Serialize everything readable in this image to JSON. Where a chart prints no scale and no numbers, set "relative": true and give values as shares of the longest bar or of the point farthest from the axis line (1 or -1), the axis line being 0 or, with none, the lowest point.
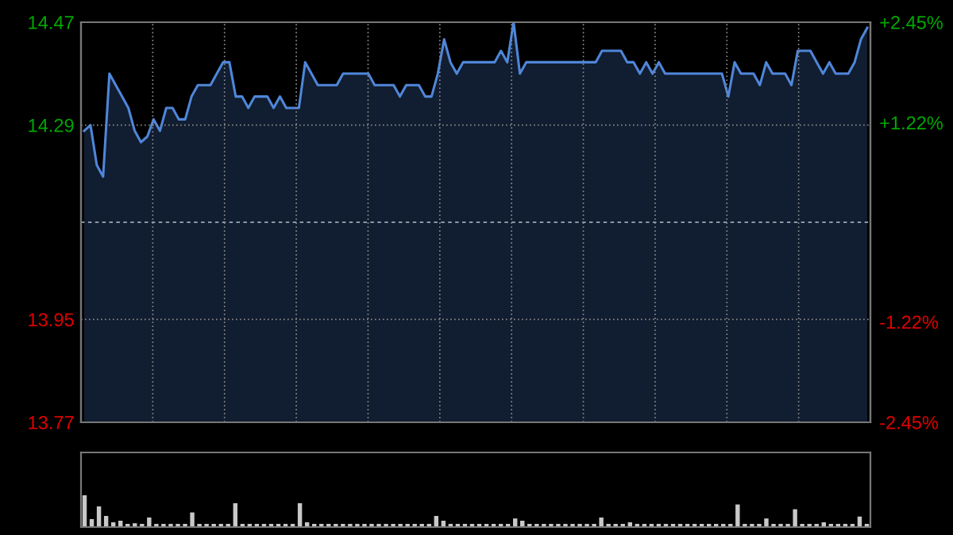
{
  "chart_data": [
    {
      "type": "area",
      "categories": [
        null,
        null,
        null,
        null,
        null,
        null,
        null,
        null,
        null,
        null,
        null,
        null,
        null,
        null,
        null,
        null,
        null,
        null,
        null,
        null,
        null,
        null,
        null,
        null,
        null,
        null,
        null,
        null,
        null,
        null,
        null,
        null,
        null,
        null,
        null,
        null,
        null,
        null,
        null,
        null,
        null,
        null,
        null,
        null,
        null,
        null,
        null,
        null,
        null,
        null,
        null,
        null,
        null,
        null,
        null,
        null,
        null,
        null,
        null,
        null,
        null,
        null,
        null,
        null,
        null,
        null,
        null,
        null,
        null,
        null,
        null,
        null,
        null,
        null,
        null,
        null,
        null,
        null,
        null,
        null,
        null,
        null,
        null,
        null,
        null,
        null,
        null,
        null,
        null,
        null,
        null,
        null,
        null,
        null,
        null,
        null,
        null,
        null,
        null,
        null,
        null,
        null,
        null,
        null,
        null,
        null,
        null,
        null,
        null,
        null,
        null,
        null,
        null,
        null,
        null,
        null,
        null,
        null,
        null,
        null,
        null,
        null,
        null,
        null,
        null
      ],
      "series": [
        {
          "color": "#4f86d9",
          "values": [
            14.28,
            14.29,
            14.22,
            14.2,
            14.38,
            14.36,
            14.34,
            14.32,
            14.28,
            14.26,
            14.27,
            14.3,
            14.28,
            14.32,
            14.32,
            14.3,
            14.3,
            14.34,
            14.36,
            14.36,
            14.36,
            14.38,
            14.4,
            14.4,
            14.34,
            14.34,
            14.32,
            14.34,
            14.34,
            14.34,
            14.32,
            14.34,
            14.32,
            14.32,
            14.32,
            14.4,
            14.38,
            14.36,
            14.36,
            14.36,
            14.36,
            14.38,
            14.38,
            14.38,
            14.38,
            14.38,
            14.36,
            14.36,
            14.36,
            14.36,
            14.34,
            14.36,
            14.36,
            14.36,
            14.34,
            14.34,
            14.38,
            14.44,
            14.4,
            14.38,
            14.4,
            14.4,
            14.4,
            14.4,
            14.4,
            14.4,
            14.42,
            14.4,
            14.47,
            14.38,
            14.4,
            14.4,
            14.4,
            14.4,
            14.4,
            14.4,
            14.4,
            14.4,
            14.4,
            14.4,
            14.4,
            14.4,
            14.42,
            14.42,
            14.42,
            14.42,
            14.4,
            14.4,
            14.38,
            14.4,
            14.38,
            14.4,
            14.38,
            14.38,
            14.38,
            14.38,
            14.38,
            14.38,
            14.38,
            14.38,
            14.38,
            14.38,
            14.34,
            14.4,
            14.38,
            14.38,
            14.38,
            14.36,
            14.4,
            14.38,
            14.38,
            14.38,
            14.36,
            14.42,
            14.42,
            14.42,
            14.4,
            14.38,
            14.4,
            14.38,
            14.38,
            14.38,
            14.4,
            14.44,
            14.46
          ]
        }
      ],
      "ylim": [
        13.77,
        14.47
      ],
      "yticks": [
        13.77,
        13.95,
        14.29,
        14.47
      ],
      "y2lim": [
        -2.45,
        2.45
      ],
      "y2ticks": [
        {
          "value": -2.45,
          "label": "-2.45%"
        },
        {
          "value": -1.22,
          "label": "-1.22%"
        },
        {
          "value": 1.22,
          "label": "+1.22%"
        },
        {
          "value": 2.45,
          "label": "+2.45%"
        }
      ],
      "ref_lines": [
        {
          "axis": "y",
          "value": 14.12,
          "label": null,
          "line_style": "dashed"
        }
      ],
      "grid": true,
      "tick_labels": "y"
    },
    {
      "type": "bar",
      "relative": true,
      "tick_labels": false,
      "categories": [
        null,
        null,
        null,
        null,
        null,
        null,
        null,
        null,
        null,
        null,
        null,
        null,
        null,
        null,
        null,
        null,
        null,
        null,
        null,
        null,
        null,
        null,
        null,
        null,
        null,
        null,
        null,
        null,
        null,
        null,
        null,
        null,
        null,
        null,
        null,
        null,
        null,
        null,
        null,
        null,
        null,
        null,
        null,
        null,
        null,
        null,
        null,
        null,
        null,
        null,
        null,
        null,
        null,
        null,
        null,
        null,
        null,
        null,
        null,
        null,
        null,
        null,
        null,
        null,
        null,
        null,
        null,
        null,
        null,
        null,
        null,
        null,
        null,
        null,
        null,
        null,
        null,
        null,
        null,
        null,
        null,
        null,
        null,
        null,
        null,
        null,
        null,
        null,
        null,
        null,
        null,
        null,
        null,
        null,
        null,
        null,
        null,
        null,
        null,
        null,
        null,
        null,
        null,
        null,
        null,
        null,
        null,
        null,
        null,
        null
      ],
      "series": [
        {
          "color": "#c8c8c8",
          "values": [
            1.0,
            0.25,
            0.65,
            0.35,
            0.15,
            0.2,
            0.1,
            0.12,
            0.1,
            0.3,
            0.1,
            0.1,
            0.1,
            0.1,
            0.1,
            0.46,
            0.1,
            0.1,
            0.1,
            0.1,
            0.1,
            0.75,
            0.1,
            0.1,
            0.1,
            0.1,
            0.1,
            0.1,
            0.1,
            0.1,
            0.75,
            0.15,
            0.1,
            0.1,
            0.1,
            0.1,
            0.1,
            0.1,
            0.1,
            0.1,
            0.1,
            0.1,
            0.1,
            0.1,
            0.1,
            0.1,
            0.1,
            0.1,
            0.1,
            0.35,
            0.2,
            0.1,
            0.1,
            0.1,
            0.1,
            0.1,
            0.1,
            0.1,
            0.1,
            0.1,
            0.27,
            0.2,
            0.1,
            0.1,
            0.1,
            0.1,
            0.1,
            0.1,
            0.1,
            0.1,
            0.1,
            0.1,
            0.3,
            0.1,
            0.1,
            0.1,
            0.15,
            0.1,
            0.1,
            0.1,
            0.1,
            0.1,
            0.1,
            0.1,
            0.1,
            0.1,
            0.1,
            0.1,
            0.1,
            0.1,
            0.1,
            0.71,
            0.1,
            0.1,
            0.1,
            0.27,
            0.1,
            0.1,
            0.1,
            0.56,
            0.1,
            0.1,
            0.1,
            0.15,
            0.1,
            0.1,
            0.1,
            0.1,
            0.33,
            0.1
          ]
        }
      ]
    }
  ]
}
